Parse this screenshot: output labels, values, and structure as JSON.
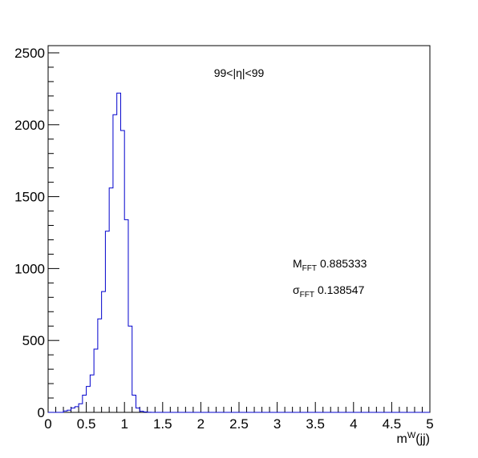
{
  "chart_data": {
    "type": "histogram",
    "title": "",
    "xlabel": {
      "base": "m",
      "sup": "W",
      "rest": "(jj)"
    },
    "ylabel": "",
    "xlim": [
      0,
      5
    ],
    "ylim": [
      0,
      2550
    ],
    "grid": false,
    "legend": "none",
    "x_tick_labels": [
      "0",
      "0.5",
      "1",
      "1.5",
      "2",
      "2.5",
      "3",
      "3.5",
      "4",
      "4.5",
      "5"
    ],
    "y_tick_labels": [
      "0",
      "500",
      "1000",
      "1500",
      "2000",
      "2500"
    ],
    "x_ticks": [
      0,
      0.5,
      1,
      1.5,
      2,
      2.5,
      3,
      3.5,
      4,
      4.5,
      5
    ],
    "y_ticks": [
      0,
      500,
      1000,
      1500,
      2000,
      2500
    ],
    "bin_width": 0.05,
    "series": [
      {
        "color": "#0000cc",
        "bin_edges_start": 0,
        "counts": [
          0,
          0,
          0,
          0,
          10,
          15,
          30,
          40,
          60,
          120,
          180,
          260,
          440,
          650,
          840,
          1260,
          1560,
          2070,
          2220,
          1960,
          1340,
          600,
          120,
          30,
          8,
          3,
          1,
          0,
          0,
          0,
          0,
          0,
          0,
          0,
          0,
          0,
          0,
          0,
          0,
          0,
          0,
          0,
          0,
          0,
          0,
          0,
          0,
          0,
          0,
          0,
          0,
          0,
          0,
          0,
          0,
          0,
          0,
          0,
          0,
          0,
          0,
          0,
          0,
          0,
          0,
          0,
          0,
          0,
          0,
          0,
          0,
          0,
          0,
          0,
          0,
          0,
          0,
          0,
          0,
          0,
          0,
          0,
          0,
          0,
          0,
          0,
          0,
          0,
          0,
          0,
          0,
          0,
          0,
          0,
          0,
          0,
          0,
          0,
          0,
          0
        ]
      }
    ],
    "annotations": {
      "eta_range": "99<|η|<99",
      "mean_label": {
        "main": "M",
        "sub": "FFT",
        "value": "0.885333"
      },
      "sigma_label": {
        "main": "σ",
        "sub": "FFT",
        "value": "0.138547"
      }
    }
  }
}
